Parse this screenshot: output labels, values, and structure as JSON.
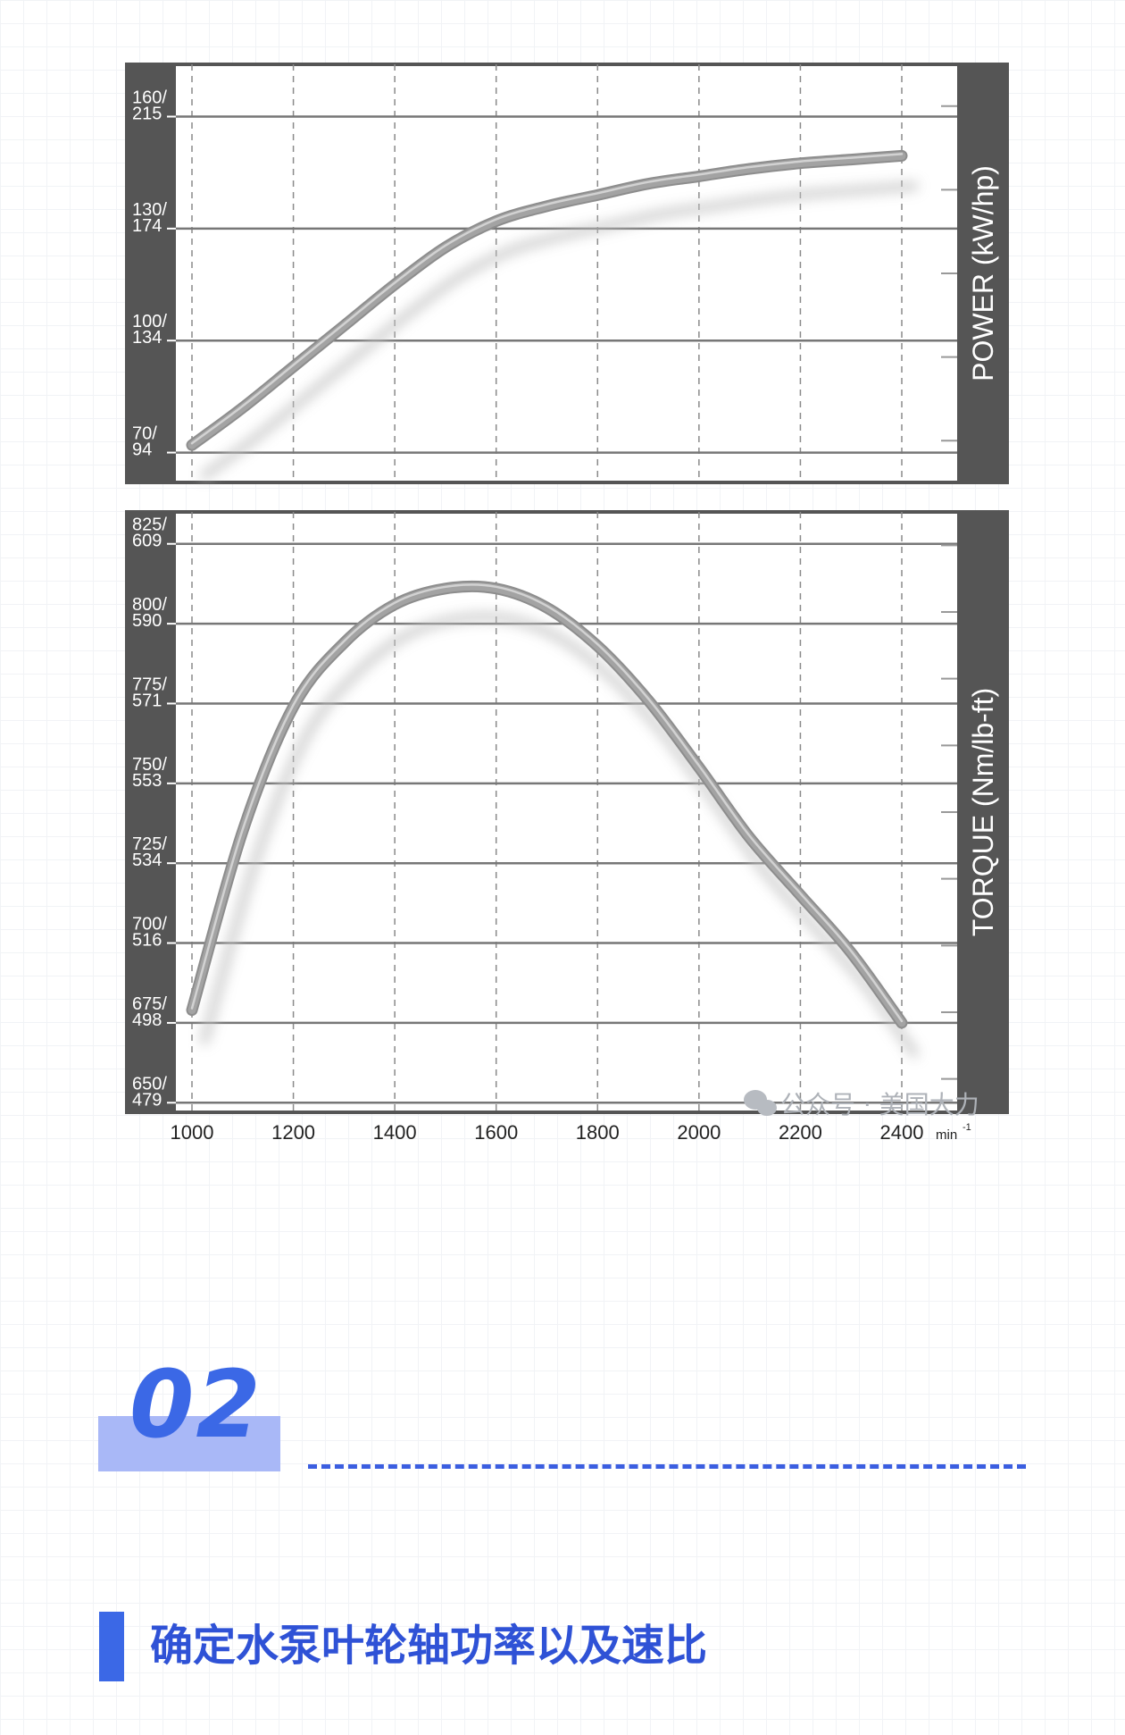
{
  "chart_data": [
    {
      "type": "line",
      "title": "",
      "xlabel": "",
      "ylabel": "POWER  (kW/hp)",
      "x": [
        1000,
        1100,
        1200,
        1300,
        1400,
        1500,
        1600,
        1700,
        1800,
        1900,
        2000,
        2100,
        2200,
        2300,
        2400
      ],
      "series": [
        {
          "name": "",
          "values": [
            72,
            82,
            93,
            104,
            115,
            125,
            132,
            136,
            139,
            142,
            144,
            146,
            147.5,
            148.5,
            149.5
          ]
        }
      ],
      "xlim": [
        1000,
        2400
      ],
      "ylim": [
        62,
        174
      ],
      "xticks": [
        "1000",
        "1200",
        "1400",
        "1600",
        "1800",
        "2000",
        "2200",
        "2400"
      ],
      "yticks": [
        {
          "value": 70,
          "kw": "70/",
          "hp": "94"
        },
        {
          "value": 100,
          "kw": "100/",
          "hp": "134"
        },
        {
          "value": 130,
          "kw": "130/",
          "hp": "174"
        },
        {
          "value": 160,
          "kw": "160/",
          "hp": "215"
        }
      ],
      "grid": true
    },
    {
      "type": "line",
      "title": "",
      "xlabel": "",
      "ylabel": "TORQUE  (Nm/lb-ft)",
      "x": [
        1000,
        1100,
        1200,
        1300,
        1400,
        1500,
        1600,
        1700,
        1800,
        1900,
        2000,
        2100,
        2200,
        2300,
        2400
      ],
      "series": [
        {
          "name": "",
          "values": [
            679,
            735,
            774,
            794,
            806,
            811,
            811,
            805,
            793,
            776,
            755,
            733,
            715,
            697,
            675
          ]
        }
      ],
      "xlim": [
        1000,
        2400
      ],
      "ylim": [
        647,
        835
      ],
      "xticks": [
        "1000",
        "1200",
        "1400",
        "1600",
        "1800",
        "2000",
        "2200",
        "2400"
      ],
      "x_unit": "min",
      "x_unit_exp": "-1",
      "yticks": [
        {
          "value": 650,
          "nm": "650/",
          "lbft": "479"
        },
        {
          "value": 675,
          "nm": "675/",
          "lbft": "498"
        },
        {
          "value": 700,
          "nm": "700/",
          "lbft": "516"
        },
        {
          "value": 725,
          "nm": "725/",
          "lbft": "534"
        },
        {
          "value": 750,
          "nm": "750/",
          "lbft": "553"
        },
        {
          "value": 775,
          "nm": "775/",
          "lbft": "571"
        },
        {
          "value": 800,
          "nm": "800/",
          "lbft": "590"
        },
        {
          "value": 825,
          "nm": "825/",
          "lbft": "609"
        }
      ],
      "grid": true
    }
  ],
  "watermark": "公众号 · 美国大力",
  "section": {
    "number": "02",
    "heading": "确定水泵叶轮轴功率以及速比"
  },
  "colors": {
    "axis_band": "#555555",
    "curve": "#a3a3a3",
    "accent": "#3b68e6",
    "accent_light": "#a9b8f7"
  }
}
